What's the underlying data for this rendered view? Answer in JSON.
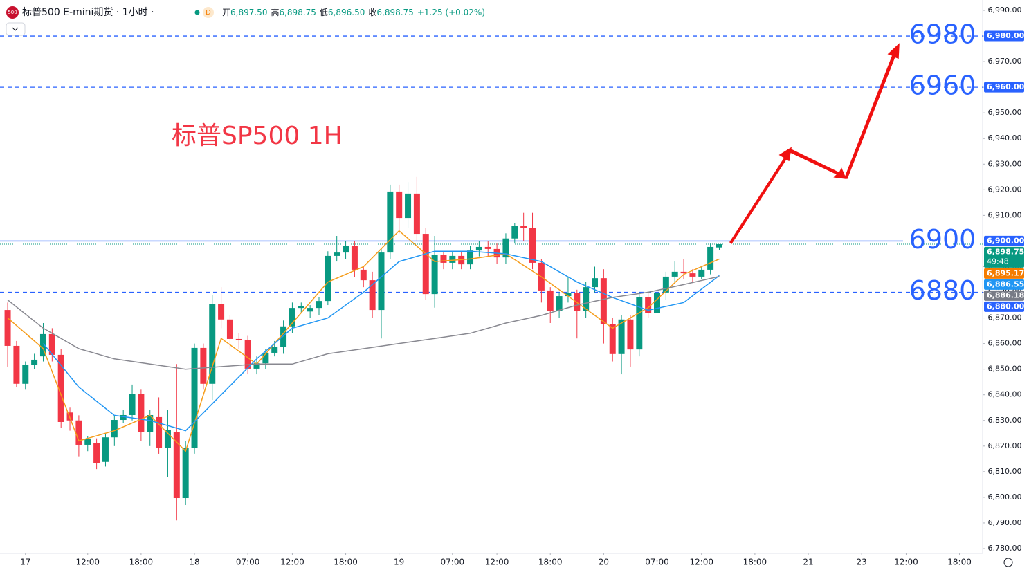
{
  "header": {
    "symbol": "标普500 E-mini期货 · 1小时 ·",
    "badge": "D",
    "ohlc": [
      {
        "label": "开",
        "value": "6,897.50"
      },
      {
        "label": "高",
        "value": "6,898.75"
      },
      {
        "label": "低",
        "value": "6,896.50"
      },
      {
        "label": "收",
        "value": "6,898.75"
      }
    ],
    "change": "+1.25 (+0.02%)",
    "logo": "500"
  },
  "chart_data": {
    "type": "candlestick",
    "title": "标普SP500 1H",
    "up_color": "#089981",
    "down_color": "#f23645",
    "open": [
      6873.1,
      6859.1,
      6844.3,
      6851.8,
      6855,
      6863.7,
      6855.6,
      6833.1,
      6830,
      6820.5,
      6821.3,
      6813.8,
      6823.4,
      6830.2,
      6832.1,
      6840.2,
      6825.4,
      6831.3,
      6819.2,
      6825.4,
      6799.7,
      6819.2,
      6858.3,
      6844.3,
      6875.3,
      6869.4,
      6861.8,
      6861.3,
      6850.2,
      6852.3,
      6856.4,
      6858.6,
      6866.7,
      6873.9,
      6872.5,
      6873.9,
      6876.6,
      6894.2,
      6895.5,
      6898.2,
      6888.8,
      6884.7,
      6873.1,
      6895.5,
      6919.3,
      6909,
      6918.5,
      6902.8,
      6879.3,
      6894.7,
      6891.5,
      6894.2,
      6890.9,
      6896.3,
      6897.7,
      6896.9,
      6893.6,
      6901,
      6905.8,
      6905,
      6891.5,
      6880.7,
      6872.6,
      6878.5,
      6879.6,
      6872.6,
      6882,
      6885.5,
      6867.7,
      6855.9,
      6869.4,
      6857.7,
      6878,
      6872,
      6879.9,
      6886.1,
      6888,
      6887.4,
      6886.1,
      6888.8,
      6897.5
    ],
    "high": [
      6876,
      6861,
      6853,
      6856,
      6868,
      6866,
      6858,
      6835,
      6832,
      6824,
      6823,
      6825,
      6832,
      6834,
      6844,
      6842,
      6834,
      6839,
      6834,
      6852,
      6822,
      6860,
      6860,
      6879,
      6882,
      6871,
      6864,
      6863,
      6855,
      6858,
      6861,
      6869,
      6876,
      6876,
      6875,
      6878,
      6896,
      6902,
      6900,
      6900,
      6890,
      6888,
      6897,
      6922,
      6922,
      6923,
      6925,
      6905,
      6902,
      6896,
      6896,
      6896,
      6898,
      6900,
      6900,
      6899,
      6903,
      6907,
      6911,
      6911,
      6893,
      6882,
      6880,
      6886,
      6881,
      6884,
      6890,
      6889,
      6870,
      6871,
      6871,
      6880,
      6880,
      6882,
      6888,
      6892,
      6893,
      6889,
      6890,
      6899,
      6898.75
    ],
    "low": [
      6851,
      6843,
      6842,
      6850,
      6853,
      6853,
      6827,
      6826,
      6816,
      6818,
      6811,
      6812,
      6820,
      6829,
      6830,
      6822,
      6820,
      6817,
      6808,
      6791,
      6797,
      6817,
      6842,
      6838,
      6866,
      6858,
      6858,
      6848,
      6848,
      6850,
      6855,
      6856,
      6864,
      6872,
      6870,
      6871,
      6875,
      6892,
      6893,
      6886,
      6882,
      6870,
      6862,
      6893,
      6903,
      6905,
      6900,
      6877,
      6874,
      6889,
      6889,
      6889,
      6889,
      6894,
      6894,
      6891,
      6891,
      6899,
      6900,
      6889,
      6876,
      6868,
      6870,
      6876,
      6862,
      6870,
      6880,
      6860,
      6853,
      6848,
      6851,
      6855,
      6870,
      6870,
      6877,
      6884,
      6885,
      6884,
      6885,
      6887,
      6896.5
    ],
    "close": [
      6859.1,
      6844.3,
      6851.8,
      6853.7,
      6863.7,
      6855.6,
      6829.4,
      6830,
      6820.5,
      6822.7,
      6813.2,
      6823.4,
      6830.2,
      6832.1,
      6840.2,
      6825.4,
      6832.1,
      6819.2,
      6826.2,
      6799.7,
      6819.2,
      6858.3,
      6844.3,
      6875.3,
      6869.4,
      6861.8,
      6861.3,
      6850.2,
      6852.3,
      6856.4,
      6858.6,
      6866.7,
      6873.9,
      6874.5,
      6873.9,
      6876.6,
      6894.2,
      6895.5,
      6898.2,
      6888.8,
      6884.7,
      6873.1,
      6895.5,
      6919.3,
      6909,
      6918.5,
      6902.8,
      6879.3,
      6894.7,
      6891.5,
      6894.2,
      6890.9,
      6896.3,
      6897.7,
      6896.9,
      6893.6,
      6901,
      6905.8,
      6905,
      6891.5,
      6880.7,
      6872.6,
      6878.5,
      6879.6,
      6872.6,
      6882,
      6885.5,
      6867.7,
      6855.9,
      6869.4,
      6857.7,
      6878,
      6872,
      6879.9,
      6886.1,
      6888,
      6887.4,
      6886.1,
      6888.8,
      6897.7,
      6898.75
    ],
    "lines": [
      {
        "color": "#f59c1a",
        "x": [
          0,
          4,
          8,
          12,
          16,
          20,
          24,
          28,
          32,
          36,
          40,
          44,
          48,
          52,
          56,
          60,
          64,
          68,
          72,
          76,
          80
        ],
        "values": [
          6870,
          6858,
          6822,
          6826,
          6832,
          6818,
          6862,
          6852,
          6868,
          6884,
          6890,
          6904,
          6892,
          6893,
          6895,
          6886,
          6876,
          6866,
          6874,
          6887,
          6893
        ]
      },
      {
        "color": "#2196f3",
        "x": [
          4,
          8,
          12,
          16,
          20,
          24,
          28,
          32,
          36,
          40,
          44,
          48,
          52,
          56,
          60,
          64,
          68,
          72,
          76,
          80
        ],
        "values": [
          6860,
          6843,
          6832,
          6830,
          6826,
          6840,
          6854,
          6866,
          6870,
          6880,
          6892,
          6896,
          6896,
          6895,
          6892,
          6884,
          6878,
          6873,
          6876,
          6886.5
        ]
      },
      {
        "color": "#888890",
        "x": [
          0,
          4,
          8,
          12,
          16,
          20,
          24,
          28,
          32,
          36,
          40,
          44,
          48,
          52,
          56,
          60,
          64,
          68,
          72,
          76,
          80
        ],
        "values": [
          6877,
          6866,
          6858,
          6854,
          6852,
          6850,
          6851,
          6852,
          6852,
          6856,
          6858,
          6860,
          6862,
          6864,
          6868,
          6871,
          6875,
          6878,
          6880,
          6883,
          6886.2
        ]
      }
    ],
    "levels": [
      {
        "value": 6980,
        "label": "6980",
        "style": "dashed"
      },
      {
        "value": 6960,
        "label": "6960",
        "style": "dashed"
      },
      {
        "value": 6900,
        "label": "6900",
        "style": "solid"
      },
      {
        "value": 6880,
        "label": "6880",
        "style": "dashed"
      }
    ],
    "price_tags": [
      {
        "value": 6980,
        "label": "6,980.00",
        "color": "#2962ff"
      },
      {
        "value": 6960,
        "label": "6,960.00",
        "color": "#2962ff"
      },
      {
        "value": 6900,
        "label": "6,900.00",
        "color": "#2962ff"
      },
      {
        "value": 6898.75,
        "label": "6,898.75",
        "color": "#089981",
        "sub": "49:48"
      },
      {
        "value": 6895.17,
        "label": "6,895.17",
        "color": "#f57c00"
      },
      {
        "value": 6886.55,
        "label": "6,886.55",
        "color": "#2196f3"
      },
      {
        "value": 6886.18,
        "label": "6,886.18",
        "color": "#787b86"
      },
      {
        "value": 6880,
        "label": "6,880.00",
        "color": "#2962ff"
      }
    ],
    "ylim": [
      6780,
      6990
    ],
    "yticks": [
      {
        "value": 6990,
        "label": "6,990.00"
      },
      {
        "value": 6980,
        "label": "6,980.00"
      },
      {
        "value": 6970,
        "label": "6,970.00"
      },
      {
        "value": 6960,
        "label": "6,960.00"
      },
      {
        "value": 6950,
        "label": "6,950.00"
      },
      {
        "value": 6940,
        "label": "6,940.00"
      },
      {
        "value": 6930,
        "label": "6,930.00"
      },
      {
        "value": 6920,
        "label": "6,920.00"
      },
      {
        "value": 6910,
        "label": "6,910.00"
      },
      {
        "value": 6900,
        "label": "6,900.00"
      },
      {
        "value": 6890,
        "label": "6,890.00"
      },
      {
        "value": 6880,
        "label": "6,880.00"
      },
      {
        "value": 6870,
        "label": "6,870.00"
      },
      {
        "value": 6860,
        "label": "6,860.00"
      },
      {
        "value": 6850,
        "label": "6,850.00"
      },
      {
        "value": 6840,
        "label": "6,840.00"
      },
      {
        "value": 6830,
        "label": "6,830.00"
      },
      {
        "value": 6820,
        "label": "6,820.00"
      },
      {
        "value": 6810,
        "label": "6,810.00"
      },
      {
        "value": 6800,
        "label": "6,800.00"
      },
      {
        "value": 6790,
        "label": "6,790.00"
      },
      {
        "value": 6780,
        "label": "6,780.00"
      }
    ],
    "xlim": [
      -0.86,
      109.6
    ],
    "xticks": [
      {
        "value": 2,
        "label": "17"
      },
      {
        "value": 9,
        "label": "12:00"
      },
      {
        "value": 15,
        "label": "18:00"
      },
      {
        "value": 21,
        "label": "18"
      },
      {
        "value": 27,
        "label": "07:00"
      },
      {
        "value": 32,
        "label": "12:00"
      },
      {
        "value": 38,
        "label": "18:00"
      },
      {
        "value": 44,
        "label": "19"
      },
      {
        "value": 50,
        "label": "07:00"
      },
      {
        "value": 55,
        "label": "12:00"
      },
      {
        "value": 61,
        "label": "18:00"
      },
      {
        "value": 67,
        "label": "20"
      },
      {
        "value": 73,
        "label": "07:00"
      },
      {
        "value": 78,
        "label": "12:00"
      },
      {
        "value": 84,
        "label": "18:00"
      },
      {
        "value": 90,
        "label": "21"
      },
      {
        "value": 96,
        "label": "23"
      },
      {
        "value": 101,
        "label": "12:00"
      },
      {
        "value": 107,
        "label": "18:00"
      }
    ]
  }
}
